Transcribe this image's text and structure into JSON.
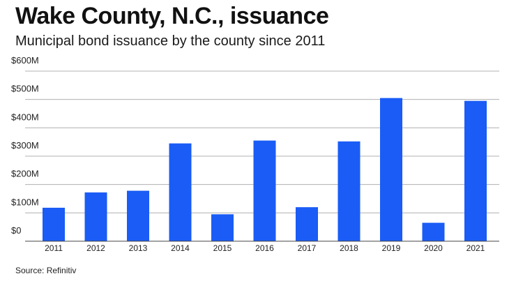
{
  "header": {
    "title": "Wake County, N.C., issuance",
    "subtitle": "Municipal bond issuance by the county since 2011"
  },
  "footer": {
    "source": "Source: Refinitiv"
  },
  "colors": {
    "bar": "#1a5cf5",
    "grid": "#b0b0b0",
    "axis": "#444444"
  },
  "chart_data": {
    "type": "bar",
    "title": "Wake County, N.C., issuance",
    "subtitle": "Municipal bond issuance by the county since 2011",
    "xlabel": "",
    "ylabel": "",
    "categories": [
      "2011",
      "2012",
      "2013",
      "2014",
      "2015",
      "2016",
      "2017",
      "2018",
      "2019",
      "2020",
      "2021"
    ],
    "values": [
      118,
      172,
      178,
      345,
      95,
      355,
      120,
      352,
      505,
      65,
      495
    ],
    "value_unit": "$M",
    "ylim": [
      0,
      600
    ],
    "yticks": [
      0,
      100,
      200,
      300,
      400,
      500,
      600
    ],
    "ytick_labels": [
      "$0",
      "$100M",
      "$200M",
      "$300M",
      "$400M",
      "$500M",
      "$600M"
    ],
    "grid": true,
    "legend": "none"
  }
}
